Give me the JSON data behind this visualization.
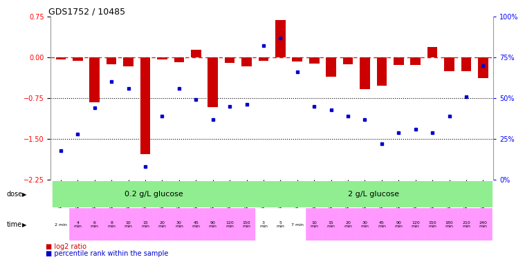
{
  "title": "GDS1752 / 10485",
  "samples": [
    "GSM95003",
    "GSM95005",
    "GSM95007",
    "GSM95009",
    "GSM95010",
    "GSM95011",
    "GSM95012",
    "GSM95013",
    "GSM95002",
    "GSM95004",
    "GSM95006",
    "GSM95008",
    "GSM94995",
    "GSM94997",
    "GSM94999",
    "GSM94988",
    "GSM94989",
    "GSM94991",
    "GSM94992",
    "GSM94993",
    "GSM94994",
    "GSM94996",
    "GSM94998",
    "GSM95000",
    "GSM95001",
    "GSM94990"
  ],
  "log2_ratio": [
    -0.04,
    -0.06,
    -0.82,
    -0.13,
    -0.17,
    -1.78,
    -0.04,
    -0.09,
    0.14,
    -0.92,
    -0.1,
    -0.16,
    -0.07,
    0.68,
    -0.08,
    -0.11,
    -0.36,
    -0.13,
    -0.58,
    -0.52,
    -0.14,
    -0.14,
    0.19,
    -0.26,
    -0.26,
    -0.38
  ],
  "percentile": [
    18,
    28,
    44,
    60,
    56,
    8,
    39,
    56,
    49,
    37,
    45,
    46,
    82,
    87,
    66,
    45,
    43,
    39,
    37,
    22,
    29,
    31,
    29,
    39,
    51,
    70
  ],
  "time_labels": [
    "2 min",
    "4\nmin",
    "6\nmin",
    "8\nmin",
    "10\nmin",
    "15\nmin",
    "20\nmin",
    "30\nmin",
    "45\nmin",
    "90\nmin",
    "120\nmin",
    "150\nmin",
    "3\nmin",
    "5\nmin",
    "7 min",
    "10\nmin",
    "15\nmin",
    "20\nmin",
    "30\nmin",
    "45\nmin",
    "90\nmin",
    "120\nmin",
    "150\nmin",
    "180\nmin",
    "210\nmin",
    "240\nmin"
  ],
  "dose_groups": [
    {
      "label": "0.2 g/L glucose",
      "start": 0,
      "end": 11,
      "color": "#90EE90"
    },
    {
      "label": "2 g/L glucose",
      "start": 12,
      "end": 25,
      "color": "#90EE90"
    }
  ],
  "bar_color": "#CC0000",
  "dot_color": "#0000CC",
  "ref_line_color": "#CC0000",
  "dotted_line_color": "#000000",
  "bg_color": "#FFFFFF",
  "ylim_left": [
    -2.25,
    0.75
  ],
  "ylim_right": [
    0,
    100
  ],
  "yticks_left": [
    0.75,
    0,
    -0.75,
    -1.5,
    -2.25
  ],
  "yticks_right": [
    100,
    75,
    50,
    25,
    0
  ],
  "ytick_labels_right": [
    "100%",
    "75%",
    "50%",
    "25%",
    "0%"
  ],
  "hlines": [
    -0.75,
    -1.5
  ],
  "time_bg_colors": [
    "#FFFFFF",
    "#FF99FF",
    "#FF99FF",
    "#FF99FF",
    "#FF99FF",
    "#FF99FF",
    "#FF99FF",
    "#FF99FF",
    "#FF99FF",
    "#FF99FF",
    "#FF99FF",
    "#FF99FF",
    "#FFFFFF",
    "#FFFFFF",
    "#FFFFFF",
    "#FF99FF",
    "#FF99FF",
    "#FF99FF",
    "#FF99FF",
    "#FF99FF",
    "#FF99FF",
    "#FF99FF",
    "#FF99FF",
    "#FF99FF",
    "#FF99FF",
    "#FF99FF"
  ]
}
